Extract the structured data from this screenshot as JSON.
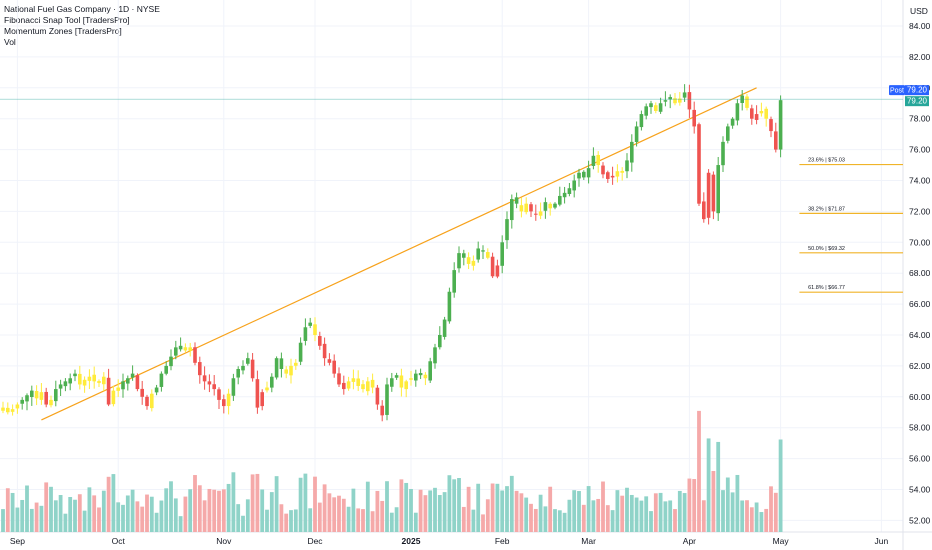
{
  "legend": {
    "title": "National Fuel Gas Company · 1D · NYSE",
    "indicator1": "Fibonacci Snap Tool [TradersPro]",
    "indicator2": "Momentum Zones [TradersPro]",
    "indicator3": "Vol"
  },
  "price_axis": {
    "currency": "USD",
    "post_label": "Post",
    "post_price": "79.20",
    "last_price": "79.20"
  },
  "colors": {
    "up": "#4caf50",
    "down": "#ef5350",
    "neutral": "#ffeb3b",
    "trend": "#f7a21b",
    "fib": "#f0b429",
    "vol_up": "#8fd3c8",
    "vol_down": "#f5a9a9"
  },
  "chart_data": {
    "type": "candlestick",
    "title": "National Fuel Gas Company · 1D · NYSE",
    "y_ticks": [
      "84.00",
      "82.00",
      "80.00",
      "78.00",
      "76.00",
      "74.00",
      "72.00",
      "70.00",
      "68.00",
      "66.00",
      "64.00",
      "62.00",
      "60.00",
      "58.00",
      "56.00",
      "54.00",
      "52.00"
    ],
    "ylim": [
      51.5,
      85
    ],
    "x_ticks": [
      {
        "label": "Sep",
        "bar": 3,
        "bold": false
      },
      {
        "label": "Oct",
        "bar": 24,
        "bold": false
      },
      {
        "label": "Nov",
        "bar": 46,
        "bold": false
      },
      {
        "label": "Dec",
        "bar": 65,
        "bold": false
      },
      {
        "label": "2025",
        "bar": 85,
        "bold": true
      },
      {
        "label": "Feb",
        "bar": 104,
        "bold": false
      },
      {
        "label": "Mar",
        "bar": 122,
        "bold": false
      },
      {
        "label": "Apr",
        "bar": 143,
        "bold": false
      },
      {
        "label": "May",
        "bar": 162,
        "bold": false
      },
      {
        "label": "Jun",
        "bar": 183,
        "bold": false
      }
    ],
    "closes": [
      59.3,
      59.0,
      59.2,
      59.5,
      59.8,
      60.1,
      60.4,
      59.9,
      60.3,
      59.5,
      59.8,
      60.5,
      60.8,
      61.0,
      61.2,
      61.5,
      60.8,
      61.1,
      61.3,
      61.0,
      60.9,
      61.3,
      59.5,
      60.4,
      60.6,
      61.0,
      61.2,
      61.5,
      60.5,
      60.0,
      59.4,
      60.2,
      60.6,
      61.5,
      62.0,
      62.6,
      63.2,
      63.3,
      63.0,
      63.2,
      62.2,
      61.4,
      61.0,
      60.8,
      60.5,
      59.8,
      59.4,
      60.2,
      61.2,
      61.8,
      62.0,
      62.5,
      61.2,
      59.3,
      60.3,
      60.6,
      61.3,
      62.5,
      61.8,
      61.5,
      62.0,
      62.2,
      63.5,
      64.5,
      64.8,
      64.0,
      63.3,
      62.5,
      62.2,
      61.5,
      60.8,
      60.5,
      61.0,
      61.2,
      60.7,
      60.5,
      61.0,
      60.6,
      59.5,
      58.8,
      60.8,
      61.2,
      61.4,
      60.6,
      61.0,
      61.2,
      61.5,
      61.4,
      61.2,
      62.3,
      63.2,
      64.0,
      65.0,
      66.8,
      68.2,
      69.3,
      69.0,
      68.6,
      68.8,
      69.6,
      69.4,
      69.0,
      67.8,
      68.5,
      70.0,
      71.5,
      72.8,
      72.5,
      72.0,
      72.5,
      72.0,
      71.8,
      72.0,
      72.6,
      72.2,
      72.5,
      73.0,
      73.2,
      73.5,
      74.0,
      74.5,
      74.2,
      74.8,
      75.6,
      75.0,
      74.4,
      74.1,
      74.3,
      74.6,
      74.5,
      75.3,
      76.5,
      77.5,
      78.3,
      78.8,
      79.0,
      78.5,
      79.0,
      79.2,
      79.4,
      79.0,
      79.3,
      79.7,
      78.6,
      77.5,
      72.5,
      71.5,
      74.5,
      72.0,
      75.0,
      76.5,
      77.5,
      78.0,
      79.0,
      79.5,
      78.7,
      78.0,
      78.3,
      78.5,
      78.0,
      77.2,
      76.0,
      79.2
    ],
    "trend_line": {
      "from_bar": 8,
      "from_price": 58.5,
      "to_bar": 157,
      "to_price": 80.0
    },
    "fibonacci": [
      {
        "label": "23.6% | $75.03",
        "price": 75.03
      },
      {
        "label": "38.2% | $71.87",
        "price": 71.87
      },
      {
        "label": "50.0% | $69.32",
        "price": 69.32
      },
      {
        "label": "61.8% | $66.77",
        "price": 66.77
      }
    ],
    "fib_start_bar": 168,
    "volume_scale": "relative"
  }
}
